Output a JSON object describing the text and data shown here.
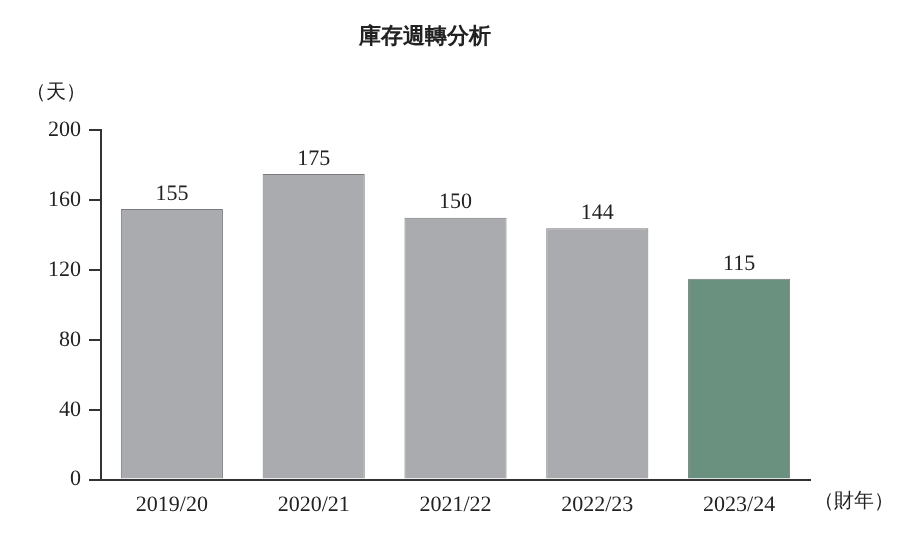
{
  "chart_data": {
    "type": "bar",
    "title": "庫存週轉分析",
    "ylabel": "（天）",
    "xlabel": "（財年）",
    "categories": [
      "2019/20",
      "2020/21",
      "2021/22",
      "2022/23",
      "2023/24"
    ],
    "values": [
      155,
      175,
      150,
      144,
      115
    ],
    "colors": [
      "#aaabae",
      "#aaabae",
      "#aaabae",
      "#aaabae",
      "#6a9080"
    ],
    "ylim": [
      0,
      200
    ],
    "yticks": [
      0,
      40,
      80,
      120,
      160,
      200
    ],
    "grid": false,
    "data_labels": true,
    "legend": false
  }
}
